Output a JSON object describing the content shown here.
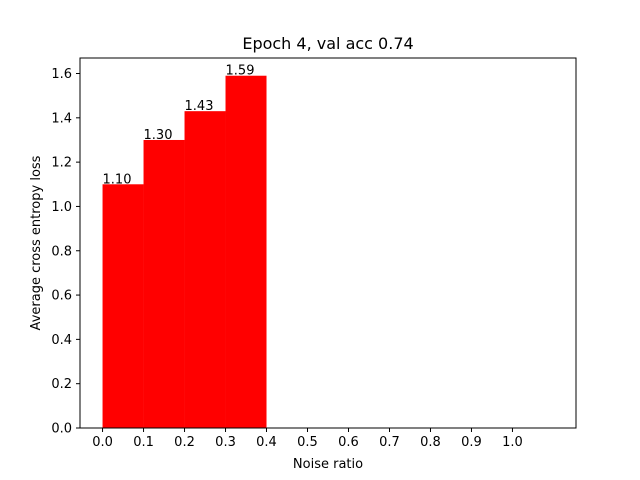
{
  "chart_data": {
    "type": "bar",
    "title": "Epoch 4, val acc 0.74",
    "xlabel": "Noise ratio",
    "ylabel": "Average cross entropy loss",
    "bars": [
      {
        "x_start": 0.0,
        "x_end": 0.1,
        "value": 1.1,
        "label": "1.10"
      },
      {
        "x_start": 0.1,
        "x_end": 0.2,
        "value": 1.3,
        "label": "1.30"
      },
      {
        "x_start": 0.2,
        "x_end": 0.3,
        "value": 1.43,
        "label": "1.43"
      },
      {
        "x_start": 0.3,
        "x_end": 0.4,
        "value": 1.59,
        "label": "1.59"
      }
    ],
    "xticks": [
      "0.0",
      "0.1",
      "0.2",
      "0.3",
      "0.4",
      "0.5",
      "0.6",
      "0.7",
      "0.8",
      "0.9",
      "1.0"
    ],
    "yticks": [
      "0.0",
      "0.2",
      "0.4",
      "0.6",
      "0.8",
      "1.0",
      "1.2",
      "1.4",
      "1.6"
    ],
    "xlim": [
      -0.055,
      1.155
    ],
    "ylim": [
      0,
      1.67
    ],
    "bar_color": "#ff0000",
    "grid": false,
    "legend": "none"
  }
}
